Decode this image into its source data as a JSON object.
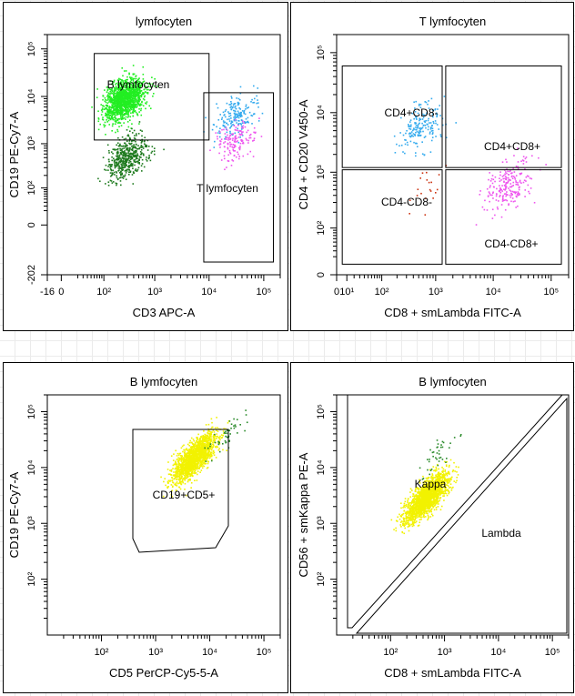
{
  "chart_data": [
    {
      "type": "scatter",
      "title": "lymfocyten",
      "xlabel": "CD3 APC-A",
      "ylabel": "CD19 PE-Cy7-A",
      "xticks": [
        "-16",
        "0",
        "10²",
        "10³",
        "10⁴",
        "10⁵"
      ],
      "yticks": [
        "-202",
        "0",
        "10²",
        "10³",
        "10⁴",
        "10⁵"
      ],
      "xlim": [
        -16,
        200000
      ],
      "ylim": [
        -202,
        200000
      ],
      "series": [
        {
          "color": "#22ee22",
          "x_center": 250,
          "y_center": 9000,
          "count": 1400
        },
        {
          "color": "#1e7a1e",
          "x_center": 280,
          "y_center": 500,
          "count": 500
        },
        {
          "color": "#33aaee",
          "x_center": 30000,
          "y_center": 4000,
          "count": 200
        },
        {
          "color": "#ee55ee",
          "x_center": 30000,
          "y_center": 1200,
          "count": 150
        }
      ],
      "gates": [
        {
          "label": "B lymfocyten",
          "shape": "rect",
          "x": [
            60,
            10000
          ],
          "y": [
            1200,
            80000
          ]
        },
        {
          "label": "T lymfocyten",
          "shape": "rect",
          "x": [
            8000,
            150000
          ],
          "y": [
            -100,
            12000
          ]
        }
      ]
    },
    {
      "type": "scatter",
      "title": "T lymfocyten",
      "xlabel": "CD8 + smLambda FITC-A",
      "ylabel": "CD4 + CD20 V450-A",
      "xticks": [
        "0",
        "10¹",
        "10²",
        "10³",
        "10⁴",
        "10⁵"
      ],
      "yticks": [
        "0",
        "10²",
        "10³",
        "10⁴",
        "10⁵"
      ],
      "xlim": [
        0,
        200000
      ],
      "ylim": [
        0,
        200000
      ],
      "series": [
        {
          "color": "#33aaee",
          "x_center": 550,
          "y_center": 6000,
          "count": 180
        },
        {
          "color": "#cc3311",
          "x_center": 700,
          "y_center": 700,
          "count": 20
        },
        {
          "color": "#ee55ee",
          "x_center": 18000,
          "y_center": 600,
          "count": 220
        }
      ],
      "gates": [
        {
          "label": "CD4+CD8-",
          "shape": "rect",
          "x": [
            5,
            1300
          ],
          "y": [
            1200,
            60000
          ]
        },
        {
          "label": "CD4+CD8+",
          "shape": "rect",
          "x": [
            1500,
            150000
          ],
          "y": [
            1200,
            60000
          ]
        },
        {
          "label": "CD4-CD8-",
          "shape": "rect",
          "x": [
            5,
            1300
          ],
          "y": [
            10,
            1100
          ]
        },
        {
          "label": "CD4-CD8+",
          "shape": "rect",
          "x": [
            1500,
            150000
          ],
          "y": [
            10,
            1100
          ]
        }
      ]
    },
    {
      "type": "scatter",
      "title": "B lymfocyten",
      "xlabel": "CD5 PerCP-Cy5-5-A",
      "ylabel": "CD19 PE-Cy7-A",
      "xticks": [
        "10²",
        "10³",
        "10⁴",
        "10⁵"
      ],
      "yticks": [
        "10²",
        "10³",
        "10⁴",
        "10⁵"
      ],
      "xlim": [
        10,
        200000
      ],
      "ylim": [
        10,
        200000
      ],
      "series": [
        {
          "color": "#f2f200",
          "x_center": 5000,
          "y_center": 15000,
          "count": 1600
        },
        {
          "color": "#2a8a2a",
          "x_center": 20000,
          "y_center": 40000,
          "count": 50
        }
      ],
      "gates": [
        {
          "label": "CD19+CD5+",
          "shape": "polygon"
        }
      ]
    },
    {
      "type": "scatter",
      "title": "B lymfocyten",
      "xlabel": "CD8 + smLambda FITC-A",
      "ylabel": "CD56 + smKappa PE-A",
      "xticks": [
        "10²",
        "10³",
        "10⁴",
        "10⁵"
      ],
      "yticks": [
        "10²",
        "10³",
        "10⁴",
        "10⁵"
      ],
      "xlim": [
        10,
        200000
      ],
      "ylim": [
        10,
        200000
      ],
      "series": [
        {
          "color": "#f2f200",
          "x_center": 450,
          "y_center": 3000,
          "count": 1800
        },
        {
          "color": "#2a8a2a",
          "x_center": 800,
          "y_center": 20000,
          "count": 40
        }
      ],
      "gates": [
        {
          "label": "Kappa",
          "shape": "polygon"
        },
        {
          "label": "Lambda",
          "shape": "polygon"
        }
      ]
    }
  ]
}
